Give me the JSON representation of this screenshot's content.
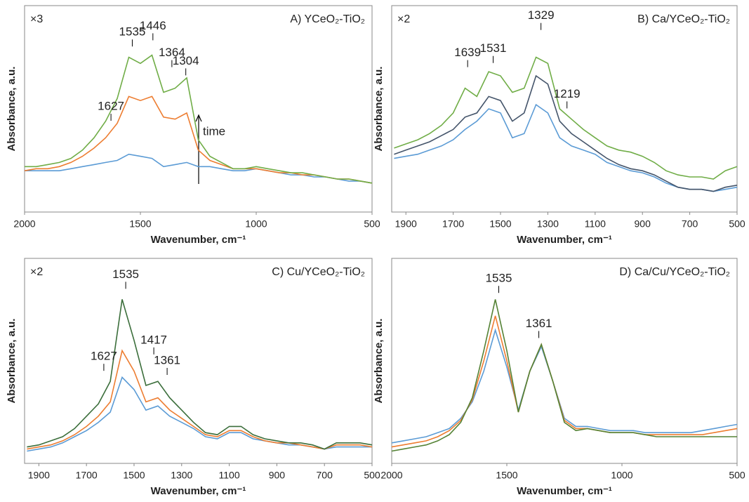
{
  "chart_data": [
    {
      "type": "line",
      "title": "A) YCeO₂-TiO₂",
      "scale_note": "×3",
      "arrow_label": "time",
      "xlabel": "Wavenumber, cm⁻¹",
      "ylabel": "Absorbance, a.u.",
      "xlim": [
        2000,
        500
      ],
      "xticks": [
        2000,
        1500,
        1000,
        500
      ],
      "ylim": [
        0,
        100
      ],
      "x": [
        2000,
        1950,
        1900,
        1850,
        1800,
        1750,
        1700,
        1650,
        1600,
        1550,
        1500,
        1450,
        1400,
        1350,
        1300,
        1250,
        1200,
        1150,
        1100,
        1050,
        1000,
        950,
        900,
        850,
        800,
        750,
        700,
        650,
        600,
        550,
        500
      ],
      "series": [
        {
          "color": "#5b9bd5",
          "values": [
            20,
            20,
            20,
            20,
            21,
            22,
            23,
            24,
            25,
            28,
            27,
            26,
            22,
            23,
            24,
            22,
            22,
            21,
            20,
            20,
            21,
            20,
            19,
            18,
            18,
            17,
            17,
            16,
            15,
            15,
            14
          ]
        },
        {
          "color": "#ed7d31",
          "values": [
            20,
            21,
            21,
            22,
            24,
            27,
            31,
            36,
            43,
            56,
            54,
            56,
            46,
            45,
            48,
            30,
            25,
            23,
            21,
            21,
            21,
            20,
            19,
            19,
            18,
            18,
            17,
            16,
            16,
            15,
            14
          ]
        },
        {
          "color": "#70ad47",
          "values": [
            22,
            22,
            23,
            24,
            26,
            30,
            36,
            44,
            55,
            75,
            72,
            76,
            58,
            60,
            65,
            35,
            27,
            24,
            21,
            21,
            22,
            21,
            20,
            19,
            19,
            18,
            17,
            16,
            16,
            15,
            14
          ]
        }
      ],
      "annotations": [
        {
          "x": 1627,
          "y": 51
        },
        {
          "x": 1535,
          "y": 87
        },
        {
          "x": 1446,
          "y": 90
        },
        {
          "x": 1364,
          "y": 77
        },
        {
          "x": 1304,
          "y": 73
        }
      ]
    },
    {
      "type": "line",
      "title": "B) Ca/YCeO₂-TiO₂",
      "scale_note": "×2",
      "xlabel": "Wavenumber, cm⁻¹",
      "ylabel": "Absorbance, a.u.",
      "xlim": [
        1960,
        500
      ],
      "xticks": [
        1900,
        1700,
        1500,
        1300,
        1100,
        900,
        700,
        500
      ],
      "ylim": [
        0,
        100
      ],
      "x": [
        1950,
        1900,
        1850,
        1800,
        1750,
        1700,
        1650,
        1600,
        1550,
        1500,
        1450,
        1400,
        1350,
        1300,
        1250,
        1200,
        1150,
        1100,
        1050,
        1000,
        950,
        900,
        850,
        800,
        750,
        700,
        650,
        600,
        550,
        500
      ],
      "series": [
        {
          "color": "#5b9bd5",
          "values": [
            26,
            27,
            28,
            30,
            32,
            35,
            40,
            44,
            50,
            48,
            36,
            38,
            52,
            48,
            36,
            32,
            30,
            28,
            24,
            22,
            20,
            19,
            17,
            14,
            12,
            11,
            11,
            10,
            11,
            12
          ]
        },
        {
          "color": "#44546a",
          "values": [
            28,
            30,
            32,
            34,
            37,
            40,
            46,
            48,
            56,
            54,
            44,
            48,
            66,
            62,
            44,
            38,
            34,
            30,
            26,
            23,
            21,
            20,
            18,
            15,
            12,
            11,
            11,
            10,
            12,
            13
          ]
        },
        {
          "color": "#70ad47",
          "values": [
            31,
            33,
            35,
            38,
            42,
            48,
            60,
            56,
            68,
            66,
            58,
            60,
            75,
            72,
            50,
            45,
            40,
            36,
            32,
            30,
            29,
            27,
            24,
            20,
            18,
            17,
            17,
            16,
            20,
            22
          ]
        }
      ],
      "annotations": [
        {
          "x": 1639,
          "y": 77
        },
        {
          "x": 1531,
          "y": 79
        },
        {
          "x": 1329,
          "y": 95
        },
        {
          "x": 1219,
          "y": 57
        }
      ]
    },
    {
      "type": "line",
      "title": "C) Cu/YCeO₂-TiO₂",
      "scale_note": "×2",
      "xlabel": "Wavenumber, cm⁻¹",
      "ylabel": "Absorbance, a.u.",
      "xlim": [
        1960,
        500
      ],
      "xticks": [
        1900,
        1700,
        1500,
        1300,
        1100,
        900,
        700,
        500
      ],
      "ylim": [
        0,
        100
      ],
      "x": [
        1950,
        1900,
        1850,
        1800,
        1750,
        1700,
        1650,
        1600,
        1550,
        1500,
        1450,
        1400,
        1350,
        1300,
        1250,
        1200,
        1150,
        1100,
        1050,
        1000,
        950,
        900,
        850,
        800,
        750,
        700,
        650,
        600,
        550,
        500
      ],
      "series": [
        {
          "color": "#5b9bd5",
          "values": [
            6,
            7,
            8,
            10,
            13,
            16,
            20,
            25,
            42,
            36,
            26,
            28,
            23,
            20,
            17,
            13,
            12,
            15,
            15,
            12,
            11,
            10,
            9,
            9,
            8,
            7,
            8,
            8,
            8,
            8
          ]
        },
        {
          "color": "#ed7d31",
          "values": [
            7,
            8,
            9,
            11,
            14,
            18,
            23,
            30,
            55,
            45,
            30,
            32,
            26,
            22,
            18,
            14,
            13,
            16,
            16,
            13,
            11,
            10,
            10,
            9,
            8,
            7,
            9,
            9,
            9,
            8
          ]
        },
        {
          "color": "#3b6e3b",
          "values": [
            8,
            9,
            11,
            13,
            17,
            23,
            29,
            40,
            80,
            60,
            38,
            40,
            32,
            26,
            20,
            15,
            14,
            18,
            18,
            14,
            12,
            11,
            10,
            10,
            9,
            7,
            10,
            10,
            10,
            9
          ]
        }
      ],
      "annotations": [
        {
          "x": 1627,
          "y": 52
        },
        {
          "x": 1535,
          "y": 92
        },
        {
          "x": 1417,
          "y": 60
        },
        {
          "x": 1361,
          "y": 50
        }
      ]
    },
    {
      "type": "line",
      "title": "D) Ca/Cu/YCeO₂-TiO₂",
      "xlabel": "Wavenumber, cm⁻¹",
      "ylabel": "Absorbance, a.u.",
      "xlim": [
        2000,
        500
      ],
      "xticks": [
        2000,
        1500,
        1000,
        500
      ],
      "ylim": [
        0,
        100
      ],
      "x": [
        2000,
        1950,
        1900,
        1850,
        1800,
        1750,
        1700,
        1650,
        1600,
        1550,
        1500,
        1450,
        1400,
        1350,
        1300,
        1250,
        1200,
        1150,
        1100,
        1050,
        1000,
        950,
        900,
        850,
        800,
        750,
        700,
        650,
        600,
        550,
        500
      ],
      "series": [
        {
          "color": "#5b9bd5",
          "values": [
            10,
            11,
            12,
            13,
            15,
            17,
            22,
            30,
            45,
            65,
            47,
            26,
            45,
            57,
            40,
            22,
            18,
            18,
            17,
            16,
            16,
            16,
            15,
            15,
            15,
            15,
            15,
            16,
            17,
            18,
            19
          ]
        },
        {
          "color": "#ed7d31",
          "values": [
            8,
            9,
            10,
            11,
            13,
            16,
            21,
            31,
            50,
            72,
            50,
            25,
            45,
            58,
            40,
            21,
            17,
            17,
            16,
            15,
            15,
            15,
            14,
            14,
            14,
            14,
            14,
            14,
            15,
            16,
            17
          ]
        },
        {
          "color": "#548235",
          "values": [
            6,
            7,
            8,
            9,
            11,
            14,
            20,
            32,
            55,
            80,
            55,
            25,
            45,
            58,
            40,
            20,
            16,
            17,
            16,
            15,
            15,
            15,
            14,
            13,
            13,
            13,
            13,
            13,
            13,
            13,
            13
          ]
        }
      ],
      "annotations": [
        {
          "x": 1535,
          "y": 90
        },
        {
          "x": 1361,
          "y": 68
        }
      ]
    }
  ]
}
